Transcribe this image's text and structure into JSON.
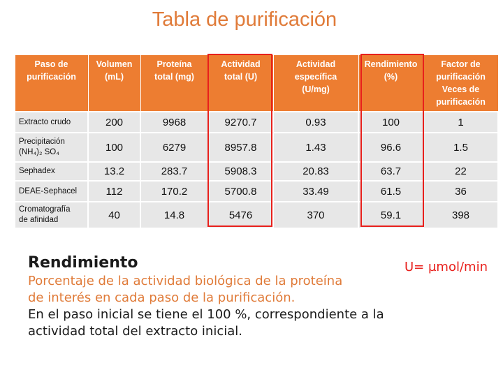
{
  "title": "Tabla de purificación",
  "table": {
    "header": [
      [
        "Paso de",
        "purificación"
      ],
      [
        "Volumen",
        "(mL)"
      ],
      [
        "Proteína",
        "total (mg)"
      ],
      [
        "Actividad",
        "total (U)"
      ],
      [
        "Actividad",
        "específica",
        "(U/mg)"
      ],
      [
        "Rendimiento",
        "(%)"
      ],
      [
        "Factor de",
        "purificación",
        "Veces de",
        "purificación"
      ]
    ],
    "rows": [
      [
        [
          "Extracto crudo"
        ],
        "200",
        "9968",
        "9270.7",
        "0.93",
        "100",
        "1"
      ],
      [
        [
          "Precipitación",
          "(NH₄)₂ SO₄"
        ],
        "100",
        "6279",
        "8957.8",
        "1.43",
        "96.6",
        "1.5"
      ],
      [
        [
          " Sephadex"
        ],
        "13.2",
        "283.7",
        "5908.3",
        "20.83",
        "63.7",
        "22"
      ],
      [
        [
          "DEAE-Sephacel"
        ],
        "112",
        "170.2",
        "5700.8",
        "33.49",
        "61.5",
        "36"
      ],
      [
        [
          "Cromatografía",
          "de afinidad"
        ],
        "40",
        "14.8",
        "5476",
        "370",
        "59.1",
        "398"
      ]
    ]
  },
  "unit_note": "U= µmol/min",
  "section": {
    "heading": "Rendimiento",
    "lines": [
      "Porcentaje de la actividad biológica de la proteína",
      "de interés en cada paso de la purificación.",
      "En el paso inicial se tiene el 100 %, correspondiente a la",
      "actividad total del extracto inicial."
    ]
  }
}
